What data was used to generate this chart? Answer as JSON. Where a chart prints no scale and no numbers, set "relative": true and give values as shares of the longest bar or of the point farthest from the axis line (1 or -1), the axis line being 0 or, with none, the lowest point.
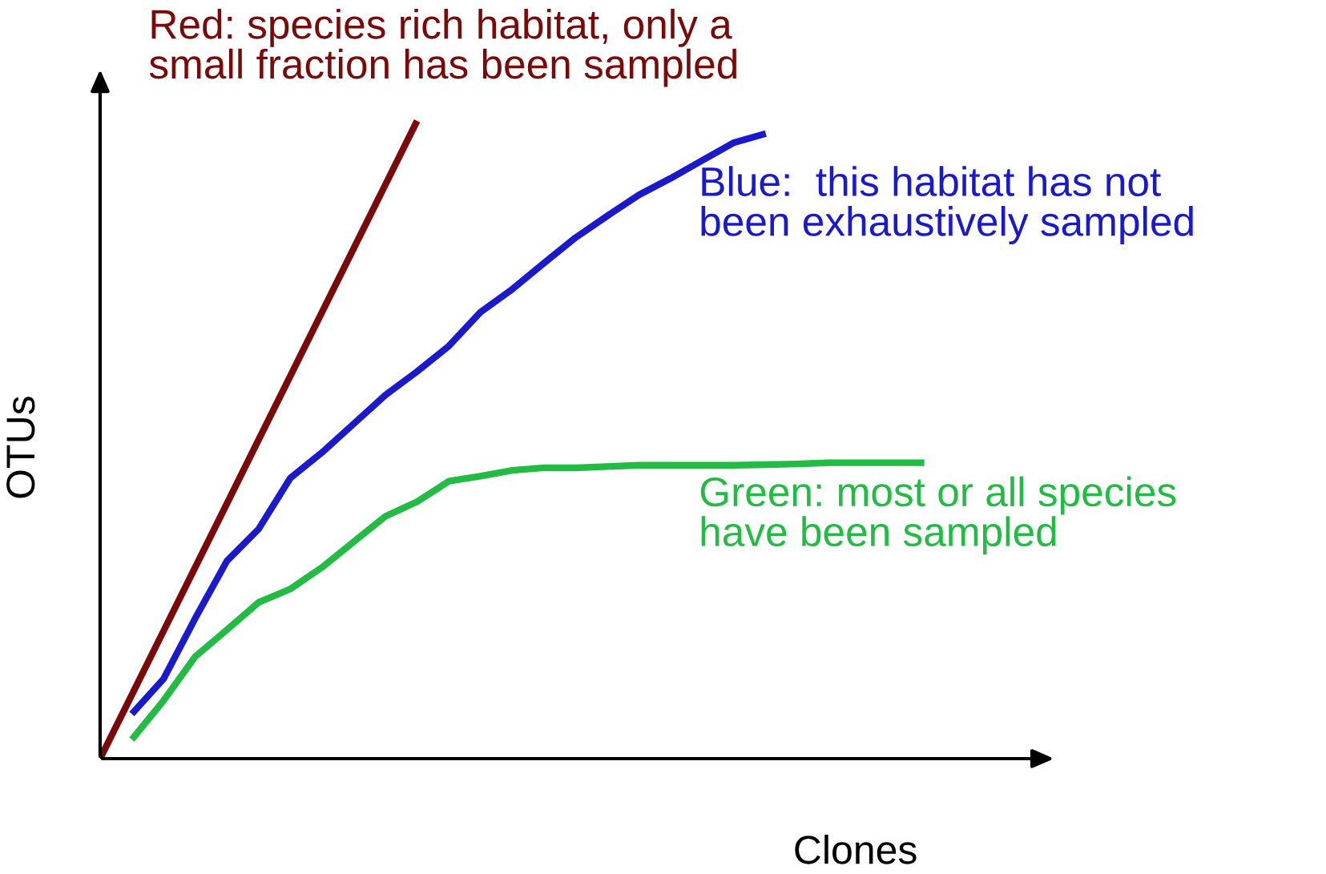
{
  "chart_data": {
    "type": "line",
    "relative": true,
    "xlabel": "Clones",
    "ylabel": "OTUs",
    "legend": false,
    "marker": "none",
    "line_style": "solid",
    "categories": [
      null,
      null,
      null,
      null,
      null,
      null,
      null,
      null,
      null,
      null,
      null,
      null,
      null,
      null,
      null,
      null,
      null,
      null,
      null,
      null,
      null,
      null,
      null,
      null,
      null,
      null,
      null
    ],
    "series": [
      {
        "name": "Red: species rich habitat, only a\nsmall fraction has been sampled",
        "color": "#7a0a0a",
        "values": [
          0,
          0.1,
          0.2,
          0.3,
          0.4,
          0.5,
          0.6,
          0.7,
          0.8,
          0.9,
          1.0,
          null,
          null,
          null,
          null,
          null,
          null,
          null,
          null,
          null,
          null,
          null,
          null,
          null,
          null,
          null,
          null
        ]
      },
      {
        "name": "Blue:  this habitat has not\nbeen exhaustively sampled",
        "color": "#1a1acc",
        "values": [
          null,
          0.07,
          0.125,
          0.22,
          0.31,
          0.36,
          0.44,
          0.48,
          0.525,
          0.57,
          0.607,
          0.647,
          0.7,
          0.736,
          0.777,
          0.817,
          0.851,
          0.884,
          0.91,
          0.938,
          0.966,
          0.98,
          null,
          null,
          null,
          null,
          null
        ]
      },
      {
        "name": "Green: most or all species\nhave been sampled",
        "color": "#22bb44",
        "values": [
          null,
          0.03,
          0.091,
          0.16,
          0.202,
          0.245,
          0.266,
          0.3,
          0.34,
          0.38,
          0.403,
          0.435,
          0.443,
          0.452,
          0.456,
          0.456,
          0.458,
          0.46,
          0.46,
          0.46,
          0.46,
          0.461,
          0.462,
          0.464,
          0.464,
          0.464,
          0.464
        ]
      }
    ]
  }
}
